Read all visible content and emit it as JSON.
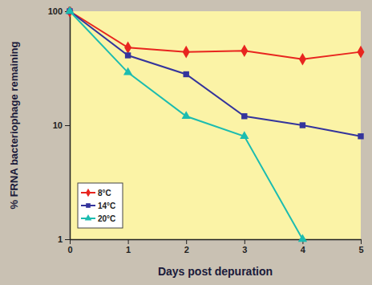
{
  "chart_data": {
    "type": "line",
    "x_label": "Days post depuration",
    "y_label": "% FRNA bacteriophage remaining",
    "x": [
      0,
      1,
      2,
      3,
      4,
      5
    ],
    "series": [
      {
        "name": "8°C",
        "color": "#e8251f",
        "marker": "diamond",
        "values": [
          100,
          48,
          44,
          45,
          38,
          44
        ]
      },
      {
        "name": "14°C",
        "color": "#34349c",
        "marker": "square",
        "values": [
          100,
          41,
          28,
          12,
          10,
          8
        ]
      },
      {
        "name": "20°C",
        "color": "#1cbcb0",
        "marker": "triangle",
        "values": [
          100,
          29,
          12,
          8,
          1,
          null
        ]
      }
    ],
    "xlim": [
      0,
      5
    ],
    "xticks": [
      0,
      1,
      2,
      3,
      4,
      5
    ],
    "ylim": [
      1,
      100
    ],
    "yticks": [
      1,
      10,
      100
    ],
    "log": "y",
    "grid": false,
    "legend": "lower left"
  }
}
